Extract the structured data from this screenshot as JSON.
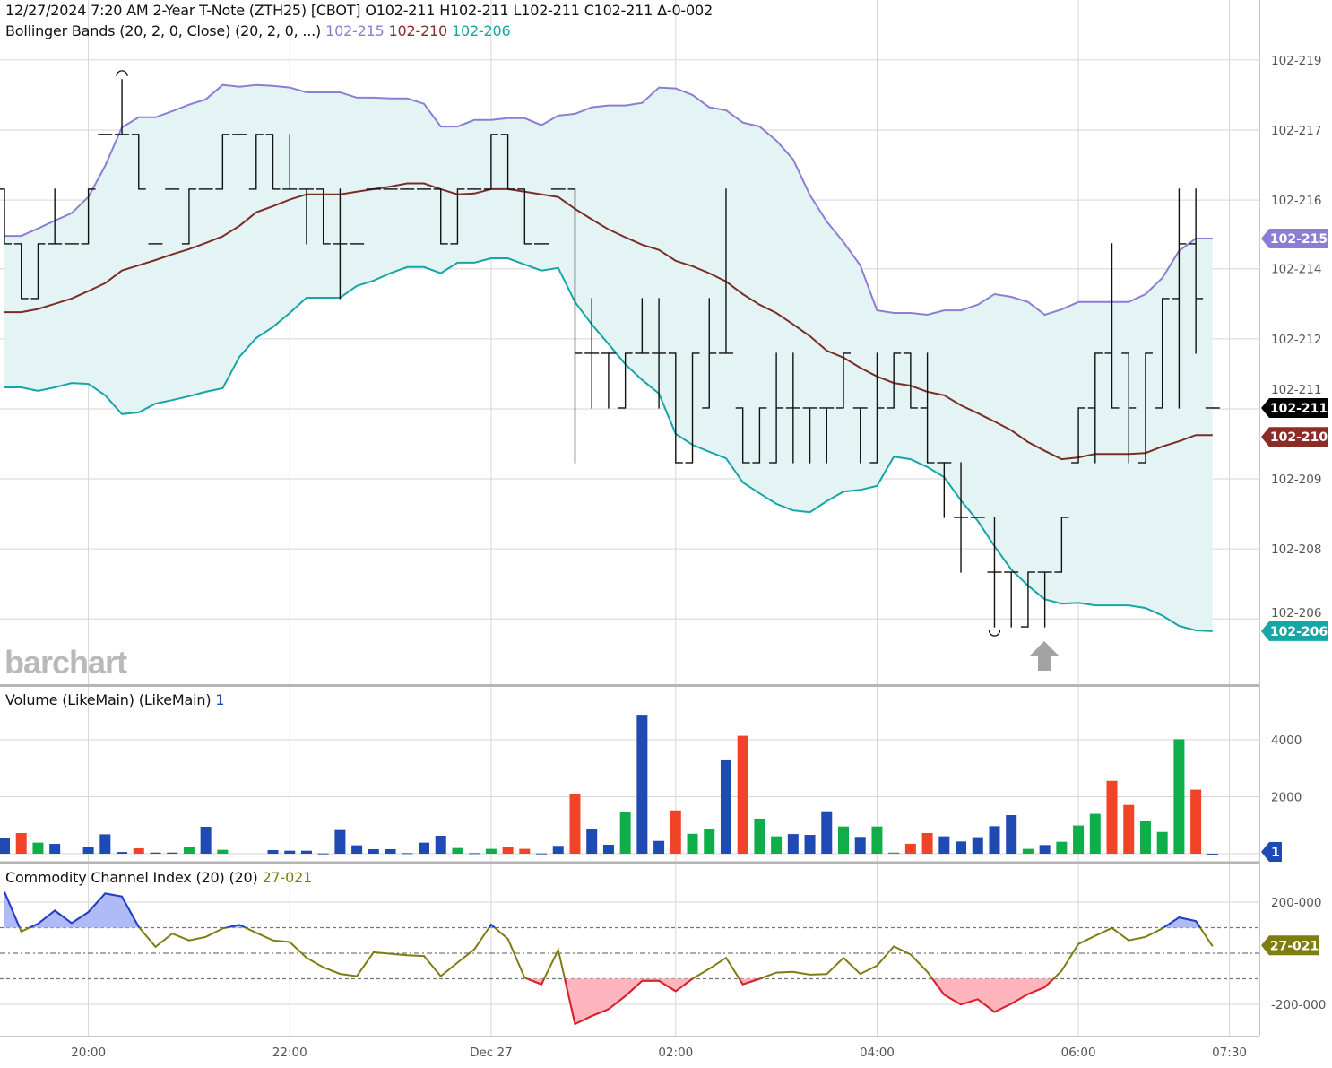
{
  "header": {
    "datetime": "12/27/2024 7:20 AM",
    "instrument": "2-Year T-Note (ZTH25) [CBOT]",
    "open": "O102-211",
    "high": "H102-211",
    "low": "L102-211",
    "close": "C102-211",
    "change": "Δ-0-002"
  },
  "bollinger": {
    "label": "Bollinger Bands (20, 2, 0, Close)",
    "params": "(20, 2, 0, ...)",
    "upper": "102-215",
    "middle": "102-210",
    "lower": "102-206"
  },
  "volume_legend": {
    "label": "Volume (LikeMain)",
    "params": "(LikeMain)",
    "value": "1"
  },
  "cci_legend": {
    "label": "Commodity Channel Index (20)",
    "params": "(20)",
    "value": "27-021"
  },
  "watermark": "barchart",
  "last_price_label": "102-211",
  "colors": {
    "bb_upper": "#8a7fd4",
    "bb_middle": "#7b2d28",
    "bb_lower": "#17a5a5",
    "bb_fill": "#e4f4f5",
    "bars": "#111111",
    "vol_up": "#0fae4b",
    "vol_down": "#f04328",
    "vol_unch": "#1f4ab3",
    "cci_line": "#7d7d12",
    "cci_high": "#1f3fd0",
    "cci_high_fill": "#aebbf6",
    "cci_low": "#e01e32",
    "cci_low_fill": "#ffb5bd",
    "last_price": "#000000"
  },
  "chart_data": [
    {
      "type": "ohlc",
      "title": "2-Year T-Note (ZTH25) [CBOT]",
      "ylim": [
        20.494,
        22.057
      ],
      "y_ticks": [
        {
          "label": "102-219",
          "value": 21.92
        },
        {
          "label": "102-217",
          "value": 21.76
        },
        {
          "label": "102-216",
          "value": 21.6
        },
        {
          "label": "102-214",
          "value": 21.443
        },
        {
          "label": "102-212",
          "value": 21.283
        },
        {
          "label": "102-211",
          "value": 21.123
        },
        {
          "label": "102-209",
          "value": 20.963
        },
        {
          "label": "102-208",
          "value": 20.803
        },
        {
          "label": "102-206",
          "value": 20.643
        }
      ],
      "x_ticks": [
        {
          "label": "20:00",
          "time": "20:00"
        },
        {
          "label": "22:00",
          "time": "22:00"
        },
        {
          "label": "Dec 27",
          "time": "00:00"
        },
        {
          "label": "02:00",
          "time": "02:00"
        },
        {
          "label": "04:00",
          "time": "04:00"
        },
        {
          "label": "06:00",
          "time": "06:00"
        },
        {
          "label": "07:30",
          "time": "07:30"
        }
      ],
      "times": [
        "19:10",
        "19:20",
        "19:30",
        "19:40",
        "19:50",
        "20:00",
        "20:10",
        "20:20",
        "20:30",
        "20:40",
        "20:50",
        "21:00",
        "21:10",
        "21:20",
        "21:30",
        "21:40",
        "21:50",
        "22:00",
        "22:10",
        "22:20",
        "22:30",
        "22:40",
        "22:50",
        "23:00",
        "23:10",
        "23:20",
        "23:30",
        "23:40",
        "23:50",
        "00:00",
        "00:10",
        "00:20",
        "00:30",
        "00:40",
        "00:50",
        "01:00",
        "01:10",
        "01:20",
        "01:30",
        "01:40",
        "02:00",
        "02:10",
        "02:20",
        "02:30",
        "02:40",
        "02:50",
        "03:00",
        "03:10",
        "03:20",
        "03:30",
        "03:40",
        "03:50",
        "04:00",
        "04:10",
        "04:20",
        "04:30",
        "04:40",
        "04:50",
        "05:00",
        "05:10",
        "05:20",
        "05:30",
        "05:40",
        "05:50",
        "06:00",
        "06:10",
        "06:20",
        "06:30",
        "06:40",
        "06:50",
        "07:00",
        "07:10",
        "07:20"
      ],
      "open": [
        21.625,
        21.5,
        21.375,
        21.5,
        21.5,
        21.5,
        21.75,
        21.75,
        21.75,
        21.5,
        21.625,
        21.5,
        21.625,
        21.625,
        21.75,
        21.625,
        21.75,
        21.625,
        21.625,
        21.625,
        21.5,
        21.5,
        21.625,
        21.625,
        21.625,
        21.625,
        21.625,
        21.5,
        21.625,
        21.625,
        21.75,
        21.625,
        21.5,
        21.625,
        21.625,
        21.25,
        21.25,
        21.125,
        21.25,
        21.25,
        21.25,
        21.0,
        21.125,
        21.25,
        21.125,
        21.0,
        21.0,
        21.125,
        21.125,
        21.125,
        21.125,
        21.125,
        21.0,
        21.125,
        21.25,
        21.125,
        21.0,
        20.875,
        20.875,
        20.75,
        20.75,
        20.625,
        20.75,
        20.75,
        21.0,
        21.125,
        21.25,
        21.25,
        21.0,
        21.125,
        21.375,
        21.5,
        21.125
      ],
      "high": [
        21.625,
        21.5,
        21.5,
        21.625,
        21.5,
        21.625,
        21.75,
        21.875,
        21.75,
        21.5,
        21.625,
        21.625,
        21.625,
        21.75,
        21.75,
        21.75,
        21.75,
        21.75,
        21.625,
        21.625,
        21.625,
        21.5,
        21.625,
        21.625,
        21.625,
        21.625,
        21.625,
        21.625,
        21.625,
        21.75,
        21.75,
        21.625,
        21.5,
        21.625,
        21.625,
        21.375,
        21.25,
        21.25,
        21.375,
        21.375,
        21.25,
        21.25,
        21.375,
        21.625,
        21.125,
        21.125,
        21.25,
        21.25,
        21.125,
        21.125,
        21.25,
        21.125,
        21.25,
        21.25,
        21.25,
        21.25,
        21.0,
        21.0,
        20.875,
        20.875,
        20.75,
        20.75,
        20.75,
        20.875,
        21.125,
        21.25,
        21.5,
        21.25,
        21.25,
        21.375,
        21.625,
        21.625,
        21.125
      ],
      "low": [
        21.5,
        21.375,
        21.375,
        21.5,
        21.5,
        21.5,
        21.75,
        21.75,
        21.625,
        21.5,
        21.625,
        21.5,
        21.625,
        21.625,
        21.75,
        21.625,
        21.625,
        21.625,
        21.5,
        21.5,
        21.375,
        21.5,
        21.625,
        21.625,
        21.625,
        21.625,
        21.5,
        21.5,
        21.625,
        21.625,
        21.625,
        21.5,
        21.5,
        21.625,
        21.0,
        21.125,
        21.125,
        21.125,
        21.25,
        21.125,
        21.0,
        21.0,
        21.125,
        21.25,
        21.0,
        21.0,
        21.0,
        21.0,
        21.0,
        21.0,
        21.125,
        21.0,
        21.0,
        21.125,
        21.125,
        21.0,
        20.875,
        20.75,
        20.875,
        20.625,
        20.625,
        20.625,
        20.625,
        20.75,
        21.0,
        21.0,
        21.125,
        21.0,
        21.0,
        21.125,
        21.125,
        21.25,
        21.125
      ],
      "close": [
        21.5,
        21.375,
        21.5,
        21.5,
        21.5,
        21.625,
        21.75,
        21.75,
        21.625,
        21.5,
        21.625,
        21.625,
        21.625,
        21.75,
        21.75,
        21.75,
        21.625,
        21.625,
        21.625,
        21.5,
        21.5,
        21.5,
        21.625,
        21.625,
        21.625,
        21.625,
        21.5,
        21.625,
        21.625,
        21.75,
        21.625,
        21.5,
        21.5,
        21.625,
        21.25,
        21.25,
        21.25,
        21.25,
        21.25,
        21.25,
        21.0,
        21.25,
        21.25,
        21.25,
        21.0,
        21.125,
        21.125,
        21.125,
        21.125,
        21.125,
        21.25,
        21.125,
        21.125,
        21.25,
        21.125,
        21.0,
        21.0,
        20.875,
        20.875,
        20.75,
        20.75,
        20.75,
        20.75,
        20.875,
        21.125,
        21.25,
        21.125,
        21.125,
        21.25,
        21.375,
        21.5,
        21.375,
        21.125
      ],
      "bb_upper": [
        21.518,
        21.518,
        21.535,
        21.553,
        21.57,
        21.607,
        21.678,
        21.766,
        21.789,
        21.789,
        21.803,
        21.818,
        21.83,
        21.863,
        21.859,
        21.863,
        21.861,
        21.857,
        21.846,
        21.846,
        21.846,
        21.834,
        21.834,
        21.832,
        21.832,
        21.82,
        21.768,
        21.768,
        21.783,
        21.783,
        21.787,
        21.787,
        21.771,
        21.793,
        21.797,
        21.812,
        21.816,
        21.816,
        21.822,
        21.857,
        21.855,
        21.84,
        21.812,
        21.805,
        21.777,
        21.768,
        21.736,
        21.693,
        21.611,
        21.551,
        21.504,
        21.451,
        21.348,
        21.342,
        21.342,
        21.338,
        21.348,
        21.348,
        21.361,
        21.385,
        21.379,
        21.367,
        21.338,
        21.35,
        21.367,
        21.367,
        21.367,
        21.367,
        21.385,
        21.422,
        21.484,
        21.512,
        21.512
      ],
      "bb_middle": [
        21.344,
        21.344,
        21.351,
        21.363,
        21.375,
        21.392,
        21.41,
        21.439,
        21.451,
        21.463,
        21.476,
        21.488,
        21.502,
        21.517,
        21.541,
        21.572,
        21.586,
        21.601,
        21.613,
        21.613,
        21.613,
        21.619,
        21.625,
        21.631,
        21.638,
        21.638,
        21.625,
        21.613,
        21.615,
        21.625,
        21.625,
        21.619,
        21.613,
        21.607,
        21.58,
        21.556,
        21.533,
        21.515,
        21.498,
        21.486,
        21.461,
        21.449,
        21.433,
        21.414,
        21.385,
        21.361,
        21.342,
        21.316,
        21.289,
        21.256,
        21.24,
        21.217,
        21.197,
        21.182,
        21.176,
        21.162,
        21.154,
        21.131,
        21.113,
        21.094,
        21.074,
        21.047,
        21.027,
        21.008,
        21.012,
        21.02,
        21.02,
        21.02,
        21.022,
        21.037,
        21.049,
        21.063,
        21.063
      ],
      "bb_lower": [
        21.172,
        21.172,
        21.164,
        21.172,
        21.182,
        21.18,
        21.154,
        21.111,
        21.115,
        21.135,
        21.143,
        21.152,
        21.162,
        21.17,
        21.242,
        21.285,
        21.31,
        21.342,
        21.377,
        21.377,
        21.377,
        21.404,
        21.416,
        21.433,
        21.447,
        21.447,
        21.433,
        21.457,
        21.457,
        21.467,
        21.467,
        21.453,
        21.439,
        21.445,
        21.367,
        21.316,
        21.271,
        21.225,
        21.189,
        21.158,
        21.066,
        21.041,
        21.025,
        21.01,
        20.955,
        20.93,
        20.906,
        20.891,
        20.887,
        20.912,
        20.934,
        20.938,
        20.947,
        21.014,
        21.008,
        20.99,
        20.967,
        20.914,
        20.867,
        20.809,
        20.756,
        20.719,
        20.688,
        20.678,
        20.68,
        20.674,
        20.674,
        20.674,
        20.668,
        20.651,
        20.627,
        20.617,
        20.615
      ]
    },
    {
      "type": "bar",
      "title": "Volume (LikeMain)",
      "ylim": [
        0,
        5860
      ],
      "y_ticks": [
        {
          "label": "4000",
          "value": 4000
        },
        {
          "label": "2000",
          "value": 2000
        }
      ],
      "values": [
        550,
        725,
        390,
        345,
        0,
        250,
        680,
        60,
        190,
        40,
        40,
        230,
        945,
        137,
        0,
        0,
        126,
        105,
        105,
        10,
        830,
        295,
        158,
        158,
        20,
        390,
        630,
        200,
        20,
        170,
        230,
        170,
        10,
        275,
        2110,
        850,
        315,
        1480,
        4880,
        450,
        1520,
        700,
        850,
        3310,
        4140,
        1230,
        610,
        690,
        660,
        1490,
        955,
        590,
        955,
        40,
        350,
        725,
        610,
        430,
        580,
        965,
        1355,
        170,
        305,
        420,
        990,
        1400,
        2560,
        1710,
        1145,
        765,
        4020,
        2250,
        1
      ],
      "direction": [
        "unch",
        "down",
        "up",
        "unch",
        "unch",
        "unch",
        "unch",
        "unch",
        "down",
        "unch",
        "unch",
        "up",
        "unch",
        "up",
        "unch",
        "unch",
        "unch",
        "unch",
        "unch",
        "unch",
        "unch",
        "unch",
        "unch",
        "unch",
        "unch",
        "unch",
        "unch",
        "up",
        "unch",
        "up",
        "down",
        "down",
        "unch",
        "unch",
        "down",
        "unch",
        "unch",
        "up",
        "unch",
        "unch",
        "down",
        "up",
        "up",
        "unch",
        "down",
        "up",
        "up",
        "unch",
        "unch",
        "unch",
        "up",
        "unch",
        "up",
        "up",
        "down",
        "down",
        "unch",
        "unch",
        "unch",
        "unch",
        "unch",
        "up",
        "unch",
        "up",
        "up",
        "up",
        "down",
        "down",
        "up",
        "up",
        "up",
        "down",
        "unch"
      ]
    },
    {
      "type": "line",
      "title": "Commodity Channel Index (20)",
      "ylim": [
        -323,
        344
      ],
      "y_ticks": [
        {
          "label": "200-000",
          "value": 200
        },
        {
          "label": "-200-000",
          "value": -200
        }
      ],
      "levels": {
        "overbought": 100,
        "zero": 0,
        "oversold": -100
      },
      "values": [
        240,
        85,
        115,
        167,
        118,
        161,
        234,
        222,
        103,
        25,
        77,
        50,
        64,
        97,
        111,
        80,
        50,
        44,
        -18,
        -55,
        -81,
        -90,
        4,
        -2,
        -8,
        -11,
        -90,
        -37,
        15,
        112,
        56,
        -96,
        -122,
        13,
        -277,
        -246,
        -219,
        -168,
        -108,
        -108,
        -149,
        -100,
        -61,
        -18,
        -122,
        -100,
        -76,
        -73,
        -84,
        -82,
        -18,
        -81,
        -49,
        27,
        -5,
        -73,
        -163,
        -201,
        -180,
        -230,
        -198,
        -160,
        -133,
        -69,
        36,
        68,
        99,
        50,
        64,
        97,
        140,
        126,
        27
      ]
    }
  ]
}
